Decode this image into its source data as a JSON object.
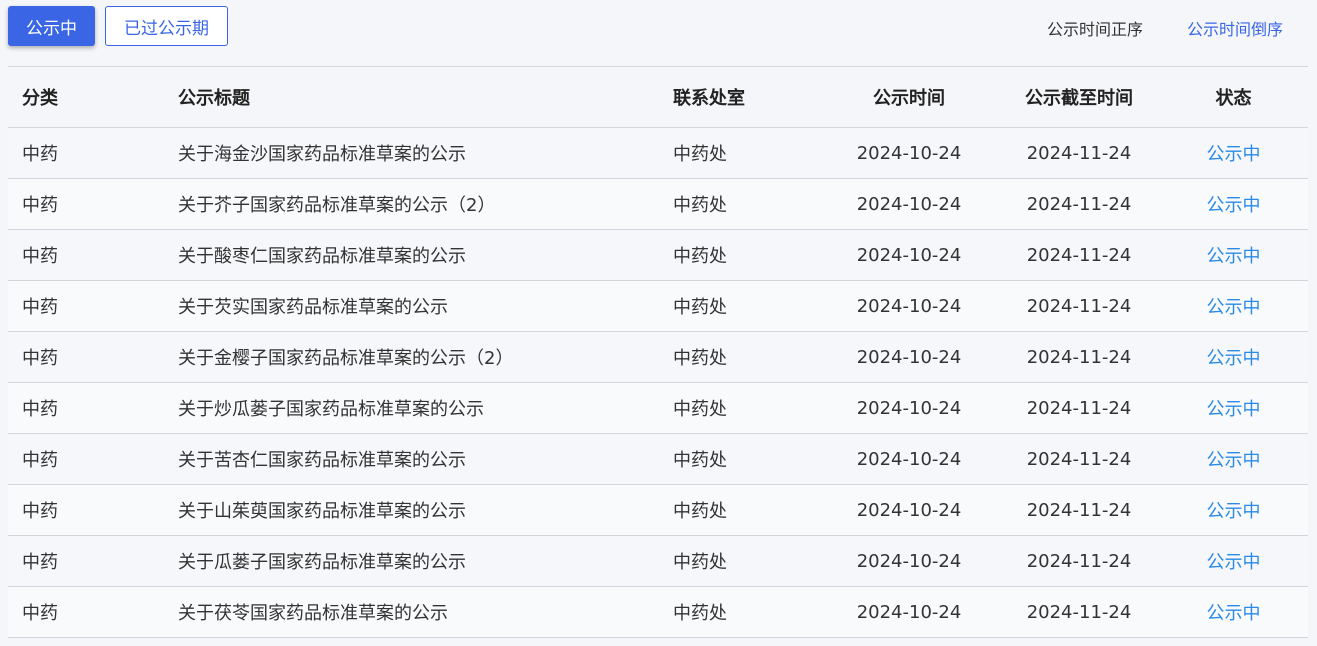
{
  "filters": {
    "active": "公示中",
    "expired": "已过公示期"
  },
  "sort": {
    "asc": "公示时间正序",
    "desc": "公示时间倒序"
  },
  "colors": {
    "accent": "#3a66e6",
    "status": "#2b8ae6"
  },
  "table": {
    "headers": [
      "分类",
      "公示标题",
      "联系处室",
      "公示时间",
      "公示截至时间",
      "状态"
    ],
    "rows": [
      [
        "中药",
        "关于海金沙国家药品标准草案的公示",
        "中药处",
        "2024-10-24",
        "2024-11-24",
        "公示中"
      ],
      [
        "中药",
        "关于芥子国家药品标准草案的公示（2）",
        "中药处",
        "2024-10-24",
        "2024-11-24",
        "公示中"
      ],
      [
        "中药",
        "关于酸枣仁国家药品标准草案的公示",
        "中药处",
        "2024-10-24",
        "2024-11-24",
        "公示中"
      ],
      [
        "中药",
        "关于芡实国家药品标准草案的公示",
        "中药处",
        "2024-10-24",
        "2024-11-24",
        "公示中"
      ],
      [
        "中药",
        "关于金樱子国家药品标准草案的公示（2）",
        "中药处",
        "2024-10-24",
        "2024-11-24",
        "公示中"
      ],
      [
        "中药",
        "关于炒瓜蒌子国家药品标准草案的公示",
        "中药处",
        "2024-10-24",
        "2024-11-24",
        "公示中"
      ],
      [
        "中药",
        "关于苦杏仁国家药品标准草案的公示",
        "中药处",
        "2024-10-24",
        "2024-11-24",
        "公示中"
      ],
      [
        "中药",
        "关于山茱萸国家药品标准草案的公示",
        "中药处",
        "2024-10-24",
        "2024-11-24",
        "公示中"
      ],
      [
        "中药",
        "关于瓜蒌子国家药品标准草案的公示",
        "中药处",
        "2024-10-24",
        "2024-11-24",
        "公示中"
      ],
      [
        "中药",
        "关于茯苓国家药品标准草案的公示",
        "中药处",
        "2024-10-24",
        "2024-11-24",
        "公示中"
      ]
    ]
  }
}
